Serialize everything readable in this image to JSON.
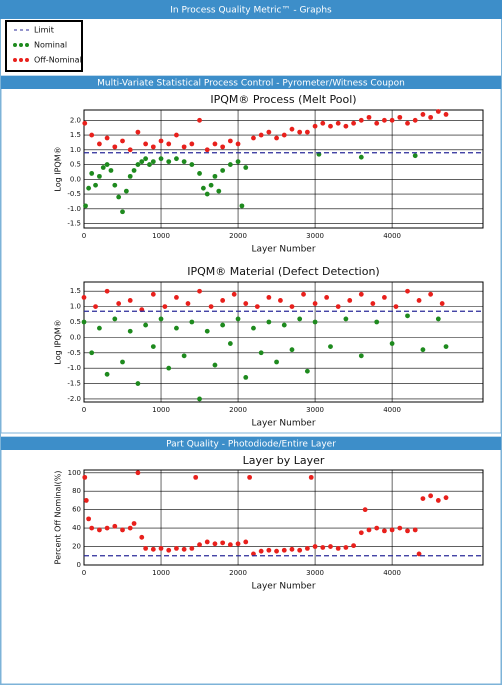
{
  "header": {
    "title": "In Process Quality Metric™ - Graphs"
  },
  "sections": [
    "Multi-Variate Statistical Process Control - Pyrometer/Witness Coupon",
    "Part Quality - Photodiode/Entire Layer"
  ],
  "chart_data": [
    {
      "type": "scatter",
      "title": "IPQM® Process (Melt Pool)",
      "xlabel": "Layer Number",
      "ylabel": "Log IPQM®",
      "xlim": [
        0,
        5180
      ],
      "xticks": [
        0,
        1000,
        2000,
        3000,
        4000
      ],
      "ylim": [
        -1.65,
        2.35
      ],
      "yticks": [
        -1.5,
        {
          "value": -1,
          "label": "-1.0"
        },
        -0.5,
        {
          "value": 0,
          "label": "0.0"
        },
        0.5,
        {
          "value": 1,
          "label": "1.0"
        },
        1.5,
        {
          "value": 2,
          "label": "2.0"
        }
      ],
      "grid": true,
      "reference_line": {
        "name": "Limit",
        "value": 0.9,
        "color": "#2b2b9a"
      },
      "series": [
        {
          "name": "Nominal",
          "color": "#1e8a1e",
          "x": [
            20,
            60,
            100,
            150,
            200,
            250,
            300,
            350,
            400,
            450,
            500,
            550,
            600,
            650,
            700,
            750,
            800,
            850,
            900,
            1000,
            1100,
            1200,
            1300,
            1400,
            1500,
            1550,
            1600,
            1650,
            1700,
            1750,
            1800,
            1900,
            2000,
            2050,
            2100,
            3050,
            3600,
            4300
          ],
          "y": [
            -0.9,
            -0.3,
            0.2,
            -0.2,
            0.1,
            0.4,
            0.5,
            0.3,
            -0.2,
            -0.6,
            -1.1,
            -0.4,
            0.1,
            0.3,
            0.5,
            0.6,
            0.7,
            0.5,
            0.6,
            0.7,
            0.6,
            0.7,
            0.6,
            0.5,
            0.2,
            -0.3,
            -0.5,
            -0.2,
            0.1,
            -0.4,
            0.3,
            0.5,
            0.6,
            -0.9,
            0.4,
            0.85,
            0.75,
            0.8
          ]
        },
        {
          "name": "Off-Nominal",
          "color": "#e8201c",
          "x": [
            10,
            100,
            200,
            300,
            400,
            500,
            600,
            700,
            800,
            900,
            1000,
            1100,
            1200,
            1300,
            1400,
            1500,
            1600,
            1700,
            1800,
            1900,
            2000,
            2200,
            2300,
            2400,
            2500,
            2600,
            2700,
            2800,
            2900,
            3000,
            3100,
            3200,
            3300,
            3400,
            3500,
            3600,
            3700,
            3800,
            3900,
            4000,
            4100,
            4200,
            4300,
            4400,
            4500,
            4600,
            4700
          ],
          "y": [
            1.9,
            1.5,
            1.2,
            1.4,
            1.1,
            1.3,
            1.0,
            1.6,
            1.2,
            1.1,
            1.3,
            1.2,
            1.5,
            1.1,
            1.2,
            2.0,
            1.0,
            1.2,
            1.1,
            1.3,
            1.2,
            1.4,
            1.5,
            1.6,
            1.4,
            1.5,
            1.7,
            1.6,
            1.6,
            1.8,
            1.9,
            1.8,
            1.9,
            1.8,
            1.9,
            2.0,
            2.1,
            1.9,
            2.0,
            2.0,
            2.1,
            1.9,
            2.0,
            2.2,
            2.1,
            2.3,
            2.2
          ]
        }
      ]
    },
    {
      "type": "scatter",
      "title": "IPQM® Material (Defect Detection)",
      "xlabel": "Layer Number",
      "ylabel": "Log IPQM®",
      "xlim": [
        0,
        5180
      ],
      "xticks": [
        0,
        1000,
        2000,
        3000,
        4000
      ],
      "ylim": [
        -2.1,
        1.8
      ],
      "yticks": [
        {
          "value": -2,
          "label": "-2.0"
        },
        -1.5,
        {
          "value": -1,
          "label": "-1.0"
        },
        -0.5,
        {
          "value": 0,
          "label": "0.0"
        },
        0.5,
        {
          "value": 1,
          "label": "1.0"
        },
        1.5
      ],
      "grid": true,
      "reference_line": {
        "value": 0.85,
        "color": "#2b2b9a"
      },
      "series": [
        {
          "color": "#1e8a1e",
          "x": [
            0,
            100,
            200,
            300,
            400,
            500,
            600,
            700,
            800,
            900,
            1000,
            1100,
            1200,
            1300,
            1400,
            1500,
            1600,
            1700,
            1800,
            1900,
            2000,
            2100,
            2200,
            2300,
            2400,
            2500,
            2600,
            2700,
            2800,
            2900,
            3000,
            3200,
            3400,
            3600,
            3800,
            4000,
            4200,
            4400,
            4600,
            4700
          ],
          "y": [
            0.5,
            -0.5,
            0.3,
            -1.2,
            0.6,
            -0.8,
            0.2,
            -1.5,
            0.4,
            -0.3,
            0.6,
            -1.0,
            0.3,
            -0.6,
            0.5,
            -2.0,
            0.2,
            -0.9,
            0.4,
            -0.2,
            0.6,
            -1.3,
            0.3,
            -0.5,
            0.5,
            -0.8,
            0.4,
            -0.4,
            0.6,
            -1.1,
            0.5,
            -0.3,
            0.6,
            -0.6,
            0.5,
            -0.2,
            0.7,
            -0.4,
            0.6,
            -0.3
          ]
        },
        {
          "color": "#e8201c",
          "x": [
            0,
            150,
            300,
            450,
            600,
            750,
            900,
            1050,
            1200,
            1350,
            1500,
            1650,
            1800,
            1950,
            2100,
            2250,
            2400,
            2550,
            2700,
            2850,
            3000,
            3150,
            3300,
            3450,
            3600,
            3750,
            3900,
            4050,
            4200,
            4350,
            4500,
            4650
          ],
          "y": [
            1.3,
            1.0,
            1.5,
            1.1,
            1.2,
            0.9,
            1.4,
            1.0,
            1.3,
            1.1,
            1.5,
            1.0,
            1.2,
            1.4,
            1.1,
            1.0,
            1.3,
            1.2,
            1.0,
            1.4,
            1.1,
            1.3,
            1.0,
            1.2,
            1.4,
            1.1,
            1.3,
            1.0,
            1.5,
            1.2,
            1.4,
            1.1
          ]
        }
      ]
    },
    {
      "type": "scatter",
      "title": "Layer by Layer",
      "xlabel": "Layer Number",
      "ylabel": "Percent Off Nominal(%)",
      "xlim": [
        0,
        5180
      ],
      "xticks": [
        0,
        1000,
        2000,
        3000,
        4000
      ],
      "ylim": [
        0,
        103
      ],
      "yticks": [
        0,
        20,
        40,
        60,
        80,
        100
      ],
      "grid": true,
      "reference_line": {
        "value": 10,
        "color": "#2b2b9a"
      },
      "series": [
        {
          "color": "#e8201c",
          "x": [
            10,
            30,
            60,
            100,
            200,
            300,
            400,
            500,
            600,
            650,
            700,
            750,
            800,
            900,
            1000,
            1100,
            1200,
            1300,
            1400,
            1450,
            1500,
            1600,
            1700,
            1800,
            1900,
            2000,
            2100,
            2150,
            2200,
            2300,
            2400,
            2500,
            2600,
            2700,
            2800,
            2900,
            2950,
            3000,
            3100,
            3200,
            3300,
            3400,
            3500,
            3600,
            3650,
            3700,
            3800,
            3900,
            4000,
            4100,
            4200,
            4300,
            4350,
            4400,
            4500,
            4600,
            4700
          ],
          "y": [
            95,
            70,
            50,
            40,
            38,
            40,
            42,
            38,
            40,
            45,
            100,
            30,
            18,
            17,
            18,
            16,
            18,
            17,
            18,
            95,
            22,
            25,
            23,
            24,
            22,
            23,
            25,
            95,
            12,
            15,
            16,
            15,
            16,
            17,
            16,
            18,
            95,
            20,
            19,
            20,
            18,
            19,
            21,
            35,
            60,
            38,
            40,
            37,
            38,
            40,
            37,
            38,
            12,
            72,
            75,
            70,
            73
          ]
        }
      ]
    }
  ]
}
